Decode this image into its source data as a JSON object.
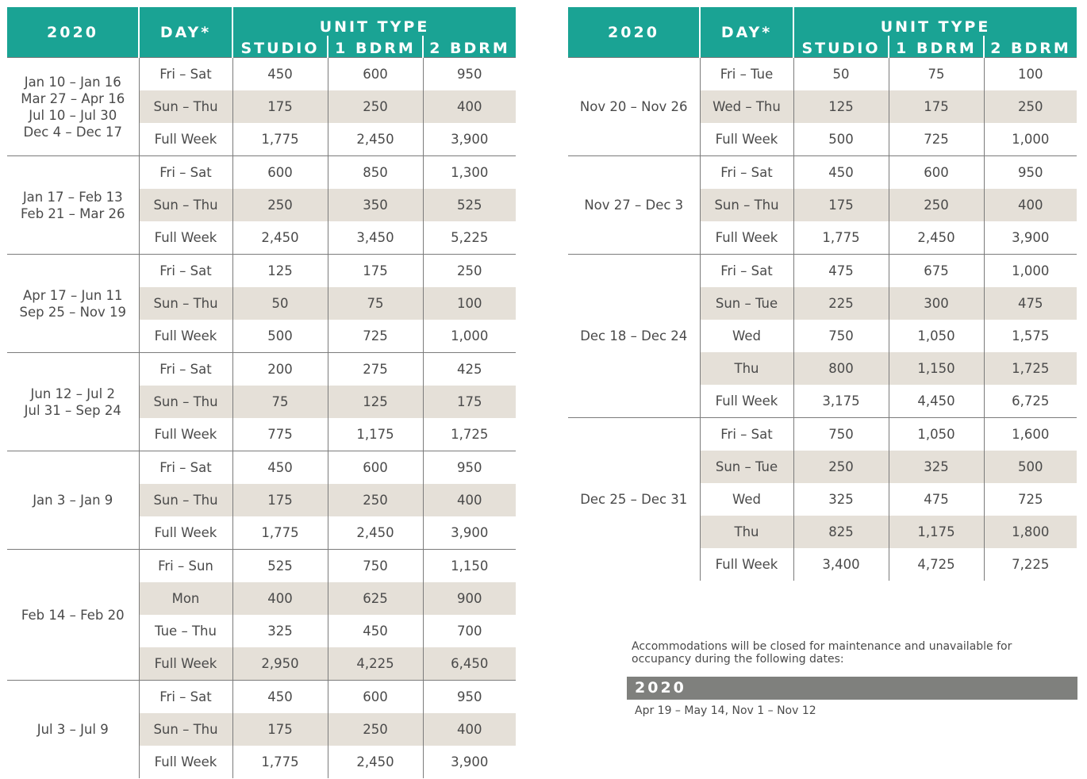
{
  "header": {
    "year": "2020",
    "day": "DAY*",
    "unit_type": "UNIT TYPE",
    "studio": "STUDIO",
    "bdrm1": "1 BDRM",
    "bdrm2": "2 BDRM"
  },
  "left_groups": [
    {
      "dates": [
        "Jan 10 – Jan 16",
        "Mar 27 – Apr 16",
        "Jul 10 – Jul 30",
        "Dec 4 – Dec 17"
      ],
      "rows": [
        {
          "day": "Fri – Sat",
          "studio": "450",
          "bdrm1": "600",
          "bdrm2": "950",
          "shade": false
        },
        {
          "day": "Sun – Thu",
          "studio": "175",
          "bdrm1": "250",
          "bdrm2": "400",
          "shade": true
        },
        {
          "day": "Full Week",
          "studio": "1,775",
          "bdrm1": "2,450",
          "bdrm2": "3,900",
          "shade": false
        }
      ]
    },
    {
      "dates": [
        "Jan 17 – Feb 13",
        "Feb 21 – Mar 26"
      ],
      "rows": [
        {
          "day": "Fri – Sat",
          "studio": "600",
          "bdrm1": "850",
          "bdrm2": "1,300",
          "shade": false
        },
        {
          "day": "Sun – Thu",
          "studio": "250",
          "bdrm1": "350",
          "bdrm2": "525",
          "shade": true
        },
        {
          "day": "Full Week",
          "studio": "2,450",
          "bdrm1": "3,450",
          "bdrm2": "5,225",
          "shade": false
        }
      ]
    },
    {
      "dates": [
        "Apr 17 – Jun 11",
        "Sep 25 – Nov 19"
      ],
      "rows": [
        {
          "day": "Fri – Sat",
          "studio": "125",
          "bdrm1": "175",
          "bdrm2": "250",
          "shade": false
        },
        {
          "day": "Sun – Thu",
          "studio": "50",
          "bdrm1": "75",
          "bdrm2": "100",
          "shade": true
        },
        {
          "day": "Full Week",
          "studio": "500",
          "bdrm1": "725",
          "bdrm2": "1,000",
          "shade": false
        }
      ]
    },
    {
      "dates": [
        "Jun 12 – Jul 2",
        "Jul 31 – Sep 24"
      ],
      "rows": [
        {
          "day": "Fri – Sat",
          "studio": "200",
          "bdrm1": "275",
          "bdrm2": "425",
          "shade": false
        },
        {
          "day": "Sun – Thu",
          "studio": "75",
          "bdrm1": "125",
          "bdrm2": "175",
          "shade": true
        },
        {
          "day": "Full Week",
          "studio": "775",
          "bdrm1": "1,175",
          "bdrm2": "1,725",
          "shade": false
        }
      ]
    },
    {
      "dates": [
        "Jan 3 – Jan 9"
      ],
      "rows": [
        {
          "day": "Fri – Sat",
          "studio": "450",
          "bdrm1": "600",
          "bdrm2": "950",
          "shade": false
        },
        {
          "day": "Sun – Thu",
          "studio": "175",
          "bdrm1": "250",
          "bdrm2": "400",
          "shade": true
        },
        {
          "day": "Full Week",
          "studio": "1,775",
          "bdrm1": "2,450",
          "bdrm2": "3,900",
          "shade": false
        }
      ]
    },
    {
      "dates": [
        "Feb 14 – Feb 20"
      ],
      "rows": [
        {
          "day": "Fri – Sun",
          "studio": "525",
          "bdrm1": "750",
          "bdrm2": "1,150",
          "shade": false
        },
        {
          "day": "Mon",
          "studio": "400",
          "bdrm1": "625",
          "bdrm2": "900",
          "shade": true
        },
        {
          "day": "Tue – Thu",
          "studio": "325",
          "bdrm1": "450",
          "bdrm2": "700",
          "shade": false
        },
        {
          "day": "Full Week",
          "studio": "2,950",
          "bdrm1": "4,225",
          "bdrm2": "6,450",
          "shade": true
        }
      ]
    },
    {
      "dates": [
        "Jul 3 – Jul 9"
      ],
      "rows": [
        {
          "day": "Fri – Sat",
          "studio": "450",
          "bdrm1": "600",
          "bdrm2": "950",
          "shade": false
        },
        {
          "day": "Sun – Thu",
          "studio": "175",
          "bdrm1": "250",
          "bdrm2": "400",
          "shade": true
        },
        {
          "day": "Full Week",
          "studio": "1,775",
          "bdrm1": "2,450",
          "bdrm2": "3,900",
          "shade": false
        }
      ]
    }
  ],
  "right_groups": [
    {
      "dates": [
        "Nov 20 – Nov 26"
      ],
      "rows": [
        {
          "day": "Fri – Tue",
          "studio": "50",
          "bdrm1": "75",
          "bdrm2": "100",
          "shade": false
        },
        {
          "day": "Wed – Thu",
          "studio": "125",
          "bdrm1": "175",
          "bdrm2": "250",
          "shade": true
        },
        {
          "day": "Full Week",
          "studio": "500",
          "bdrm1": "725",
          "bdrm2": "1,000",
          "shade": false
        }
      ]
    },
    {
      "dates": [
        "Nov 27 – Dec 3"
      ],
      "rows": [
        {
          "day": "Fri – Sat",
          "studio": "450",
          "bdrm1": "600",
          "bdrm2": "950",
          "shade": false
        },
        {
          "day": "Sun – Thu",
          "studio": "175",
          "bdrm1": "250",
          "bdrm2": "400",
          "shade": true
        },
        {
          "day": "Full Week",
          "studio": "1,775",
          "bdrm1": "2,450",
          "bdrm2": "3,900",
          "shade": false
        }
      ]
    },
    {
      "dates": [
        "Dec 18 – Dec 24"
      ],
      "rows": [
        {
          "day": "Fri – Sat",
          "studio": "475",
          "bdrm1": "675",
          "bdrm2": "1,000",
          "shade": false
        },
        {
          "day": "Sun – Tue",
          "studio": "225",
          "bdrm1": "300",
          "bdrm2": "475",
          "shade": true
        },
        {
          "day": "Wed",
          "studio": "750",
          "bdrm1": "1,050",
          "bdrm2": "1,575",
          "shade": false
        },
        {
          "day": "Thu",
          "studio": "800",
          "bdrm1": "1,150",
          "bdrm2": "1,725",
          "shade": true
        },
        {
          "day": "Full Week",
          "studio": "3,175",
          "bdrm1": "4,450",
          "bdrm2": "6,725",
          "shade": false
        }
      ]
    },
    {
      "dates": [
        "Dec 25 – Dec 31"
      ],
      "rows": [
        {
          "day": "Fri – Sat",
          "studio": "750",
          "bdrm1": "1,050",
          "bdrm2": "1,600",
          "shade": false
        },
        {
          "day": "Sun – Tue",
          "studio": "250",
          "bdrm1": "325",
          "bdrm2": "500",
          "shade": true
        },
        {
          "day": "Wed",
          "studio": "325",
          "bdrm1": "475",
          "bdrm2": "725",
          "shade": false
        },
        {
          "day": "Thu",
          "studio": "825",
          "bdrm1": "1,175",
          "bdrm2": "1,800",
          "shade": true
        },
        {
          "day": "Full Week",
          "studio": "3,400",
          "bdrm1": "4,725",
          "bdrm2": "7,225",
          "shade": false
        }
      ]
    }
  ],
  "closure": {
    "note": "Accommodations will be closed for maintenance and unavailable for occupancy during the following dates:",
    "year": "2020",
    "dates": "Apr 19 – May 14, Nov 1 – Nov 12"
  },
  "colors": {
    "header_teal": "#1aa394",
    "row_shade": "#e5e0d8",
    "closure_bar_gray": "#7f807d"
  }
}
